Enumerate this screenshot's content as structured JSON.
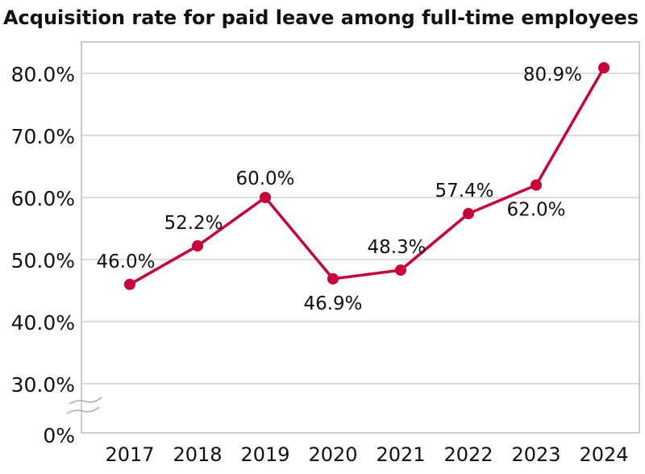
{
  "chart_data": {
    "type": "line",
    "title": "Acquisition rate for paid leave among full-time employees",
    "categories": [
      "2017",
      "2018",
      "2019",
      "2020",
      "2021",
      "2022",
      "2023",
      "2024"
    ],
    "values": [
      46.0,
      52.2,
      60.0,
      46.9,
      48.3,
      57.4,
      62.0,
      80.9
    ],
    "data_labels": [
      "46.0%",
      "52.2%",
      "60.0%",
      "46.9%",
      "48.3%",
      "57.4%",
      "62.0%",
      "80.9%"
    ],
    "label_positions": [
      "above-left",
      "above-left",
      "above",
      "below",
      "above-left",
      "above-left",
      "below",
      "left"
    ],
    "y_ticks": [
      30,
      40,
      50,
      60,
      70,
      80
    ],
    "y_tick_labels": [
      "30.0%",
      "40.0%",
      "50.0%",
      "60.0%",
      "70.0%",
      "80.0%"
    ],
    "y_baseline_label": "0%",
    "axis_break": true,
    "ylim": [
      30,
      85
    ],
    "grid": true,
    "line_color": "#c8003c",
    "grid_color": "#bbbbbb"
  }
}
